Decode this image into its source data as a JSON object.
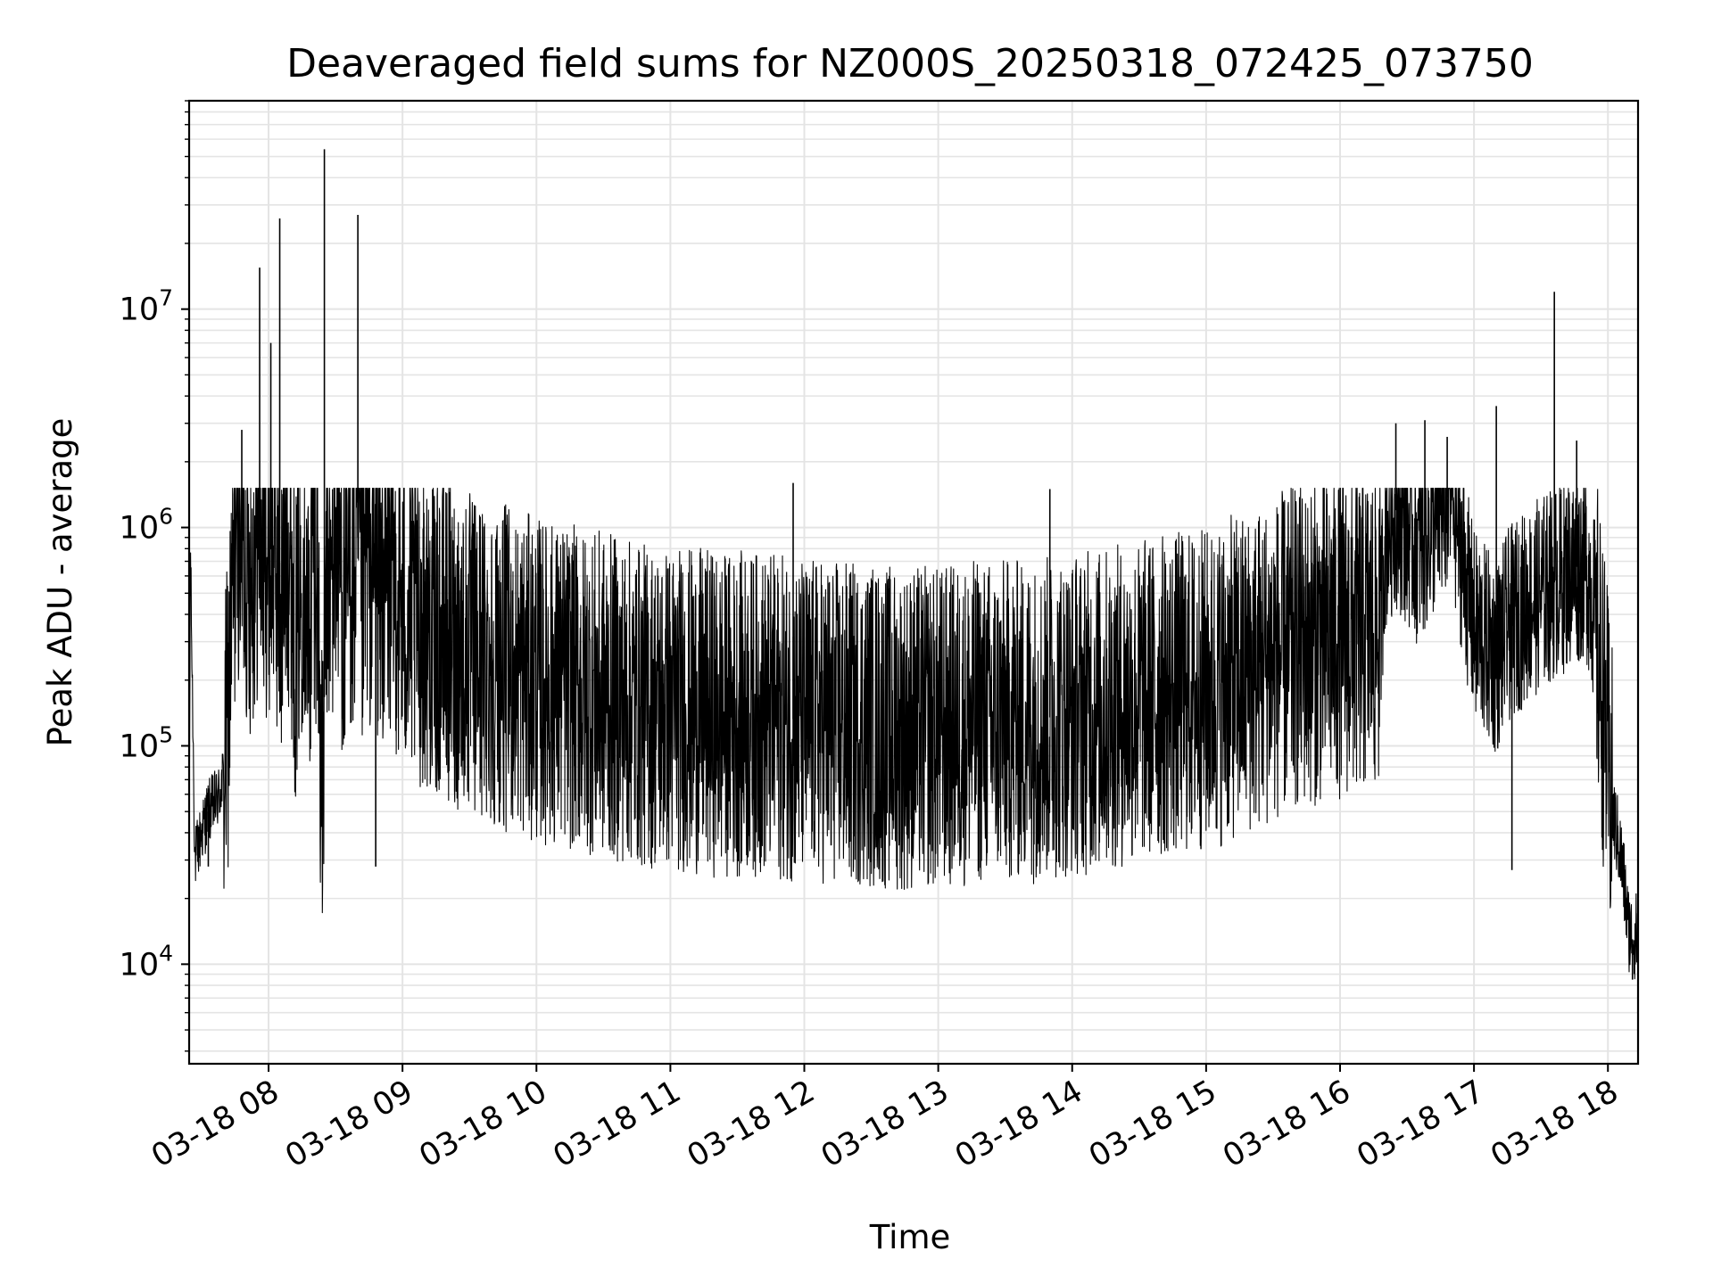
{
  "chart_data": {
    "type": "line",
    "title": "Deaveraged field sums for NZ000S_20250318_072425_073750",
    "xlabel": "Time",
    "ylabel": "Peak ADU - average",
    "yscale": "log",
    "grid": true,
    "legend": "none",
    "line_color": "#000000",
    "grid_color": "#e4e4e4",
    "xlim": [
      "03-18 07:24:25",
      "03-18 18:13:30"
    ],
    "ylim": [
      3500,
      90000000
    ],
    "x_ticks": [
      {
        "time": "03-18 08:00",
        "label": "03-18 08"
      },
      {
        "time": "03-18 09:00",
        "label": "03-18 09"
      },
      {
        "time": "03-18 10:00",
        "label": "03-18 10"
      },
      {
        "time": "03-18 11:00",
        "label": "03-18 11"
      },
      {
        "time": "03-18 12:00",
        "label": "03-18 12"
      },
      {
        "time": "03-18 13:00",
        "label": "03-18 13"
      },
      {
        "time": "03-18 14:00",
        "label": "03-18 14"
      },
      {
        "time": "03-18 15:00",
        "label": "03-18 15"
      },
      {
        "time": "03-18 16:00",
        "label": "03-18 16"
      },
      {
        "time": "03-18 17:00",
        "label": "03-18 17"
      },
      {
        "time": "03-18 18:00",
        "label": "03-18 18"
      }
    ],
    "y_ticks": [
      {
        "value": 10000,
        "base": "10",
        "exp": "4"
      },
      {
        "value": 100000,
        "base": "10",
        "exp": "5"
      },
      {
        "value": 1000000,
        "base": "10",
        "exp": "6"
      },
      {
        "value": 10000000,
        "base": "10",
        "exp": "7"
      }
    ],
    "series": [
      {
        "x": [
          "03-18 07:24:25",
          "03-18 07:25:00",
          "03-18 07:27:00",
          "03-18 07:30:00",
          "03-18 07:33:00",
          "03-18 07:36:00",
          "03-18 07:38:00",
          "03-18 07:40:00",
          "03-18 07:42:00",
          "03-18 07:44:00",
          "03-18 07:46:00",
          "03-18 07:48:00",
          "03-18 07:50:00",
          "03-18 07:52:00",
          "03-18 07:54:00",
          "03-18 07:56:00",
          "03-18 07:58:00",
          "03-18 08:00:00",
          "03-18 08:02:00",
          "03-18 08:04:00",
          "03-18 08:06:00",
          "03-18 08:08:00",
          "03-18 08:10:00",
          "03-18 08:12:00",
          "03-18 08:14:00",
          "03-18 08:16:00",
          "03-18 08:18:00",
          "03-18 08:20:00",
          "03-18 08:22:00",
          "03-18 08:24:00",
          "03-18 08:26:00",
          "03-18 08:28:00",
          "03-18 08:30:00",
          "03-18 08:32:00",
          "03-18 08:34:00",
          "03-18 08:36:00",
          "03-18 08:38:00",
          "03-18 08:40:00",
          "03-18 08:42:00",
          "03-18 08:44:00",
          "03-18 08:46:00",
          "03-18 08:48:00",
          "03-18 08:50:00",
          "03-18 08:55:00",
          "03-18 09:00:00",
          "03-18 09:10:00",
          "03-18 09:20:00",
          "03-18 09:30:00",
          "03-18 09:40:00",
          "03-18 09:50:00",
          "03-18 10:00:00",
          "03-18 10:10:00",
          "03-18 10:20:00",
          "03-18 10:30:00",
          "03-18 10:40:00",
          "03-18 10:50:00",
          "03-18 11:00:00",
          "03-18 11:10:00",
          "03-18 11:20:00",
          "03-18 11:30:00",
          "03-18 11:40:00",
          "03-18 11:50:00",
          "03-18 12:00:00",
          "03-18 12:10:00",
          "03-18 12:20:00",
          "03-18 12:30:00",
          "03-18 12:40:00",
          "03-18 12:50:00",
          "03-18 13:00:00",
          "03-18 13:10:00",
          "03-18 13:20:00",
          "03-18 13:30:00",
          "03-18 13:40:00",
          "03-18 13:50:00",
          "03-18 14:00:00",
          "03-18 14:10:00",
          "03-18 14:20:00",
          "03-18 14:30:00",
          "03-18 14:40:00",
          "03-18 14:50:00",
          "03-18 15:00:00",
          "03-18 15:10:00",
          "03-18 15:20:00",
          "03-18 15:30:00",
          "03-18 15:40:00",
          "03-18 15:50:00",
          "03-18 16:00:00",
          "03-18 16:10:00",
          "03-18 16:18:00",
          "03-18 16:20:00",
          "03-18 16:25:00",
          "03-18 16:30:00",
          "03-18 16:35:00",
          "03-18 16:40:00",
          "03-18 16:45:00",
          "03-18 16:50:00",
          "03-18 16:55:00",
          "03-18 17:00:00",
          "03-18 17:05:00",
          "03-18 17:10:00",
          "03-18 17:15:00",
          "03-18 17:20:00",
          "03-18 17:25:00",
          "03-18 17:30:00",
          "03-18 17:35:00",
          "03-18 17:40:00",
          "03-18 17:45:00",
          "03-18 17:50:00",
          "03-18 17:53:00",
          "03-18 17:56:00",
          "03-18 17:59:00",
          "03-18 18:02:00",
          "03-18 18:05:00",
          "03-18 18:07:00",
          "03-18 18:09:00",
          "03-18 18:11:00",
          "03-18 18:13:30"
        ],
        "y": [
          28000,
          750000,
          30000,
          40000,
          50000,
          55000,
          60000,
          75000,
          150000,
          500000,
          1200000,
          900000,
          700000,
          600000,
          750000,
          1000000,
          800000,
          700000,
          900000,
          600000,
          400000,
          1000000,
          700000,
          300000,
          500000,
          800000,
          250000,
          900000,
          600000,
          40000,
          700000,
          500000,
          900000,
          800000,
          300000,
          700000,
          500000,
          900000,
          400000,
          800000,
          600000,
          700000,
          500000,
          600000,
          400000,
          350000,
          300000,
          260000,
          240000,
          220000,
          200000,
          190000,
          180000,
          170000,
          160000,
          150000,
          150000,
          145000,
          140000,
          140000,
          140000,
          135000,
          130000,
          130000,
          125000,
          125000,
          120000,
          120000,
          120000,
          125000,
          130000,
          130000,
          130000,
          135000,
          140000,
          145000,
          150000,
          160000,
          170000,
          175000,
          180000,
          200000,
          220000,
          250000,
          280000,
          300000,
          320000,
          330000,
          340000,
          900000,
          1200000,
          1000000,
          800000,
          1000000,
          1200000,
          1500000,
          700000,
          350000,
          300000,
          250000,
          350000,
          400000,
          450000,
          500000,
          550000,
          600000,
          650000,
          700000,
          500000,
          250000,
          120000,
          50000,
          35000,
          25000,
          15000,
          13000,
          14000
        ]
      }
    ],
    "spikes": [
      {
        "x": "03-18 07:33:00",
        "y": 28000
      },
      {
        "x": "03-18 07:48:00",
        "y": 2800000
      },
      {
        "x": "03-18 07:56:00",
        "y": 15500000
      },
      {
        "x": "03-18 08:01:00",
        "y": 7000000
      },
      {
        "x": "03-18 08:05:00",
        "y": 26000000
      },
      {
        "x": "03-18 08:25:00",
        "y": 54000000
      },
      {
        "x": "03-18 08:40:00",
        "y": 27000000
      },
      {
        "x": "03-18 08:48:00",
        "y": 28000
      },
      {
        "x": "03-18 11:55:00",
        "y": 1600000
      },
      {
        "x": "03-18 12:12:00",
        "y": 35000
      },
      {
        "x": "03-18 13:50:00",
        "y": 1500000
      },
      {
        "x": "03-18 16:25:00",
        "y": 3000000
      },
      {
        "x": "03-18 16:38:00",
        "y": 3100000
      },
      {
        "x": "03-18 16:48:00",
        "y": 2600000
      },
      {
        "x": "03-18 17:10:00",
        "y": 3600000
      },
      {
        "x": "03-18 17:17:00",
        "y": 27000
      },
      {
        "x": "03-18 17:36:00",
        "y": 12000000
      },
      {
        "x": "03-18 17:46:00",
        "y": 2500000
      },
      {
        "x": "03-18 18:11:00",
        "y": 8500
      }
    ]
  }
}
